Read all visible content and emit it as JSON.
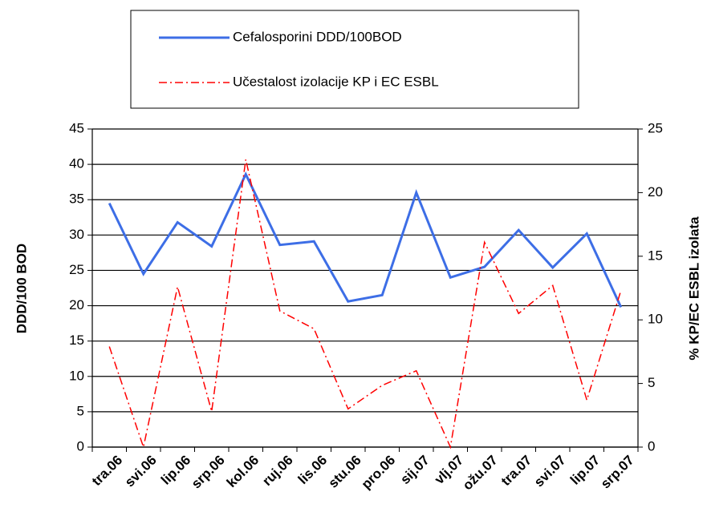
{
  "chart_data": {
    "type": "line",
    "categories": [
      "tra.06",
      "svi.06",
      "lip.06",
      "srp.06",
      "kol.06",
      "ruj.06",
      "lis.06",
      "stu.06",
      "pro.06",
      "sij.07",
      "vlj.07",
      "ožu.07",
      "tra.07",
      "svi.07",
      "lip.07",
      "srp.07"
    ],
    "series": [
      {
        "name": "Cefalosporini DDD/100BOD",
        "color": "#3d6ee6",
        "dash": "solid",
        "values": [
          34.5,
          24.5,
          31.8,
          28.4,
          38.6,
          28.6,
          29.1,
          20.6,
          21.5,
          36,
          24,
          25.5,
          30.7,
          25.4,
          30.2,
          19.8
        ]
      },
      {
        "name": "Učestalost izolacije KP i EC ESBL",
        "color": "#ff0000",
        "dash": "dashdot",
        "axis": "y2",
        "values": [
          7.9,
          0,
          12.6,
          2.8,
          22.6,
          10.7,
          9.3,
          3,
          4.85,
          6,
          0,
          16.1,
          10.5,
          12.7,
          3.7,
          12.3
        ]
      }
    ],
    "ylabel": "DDD/100 BOD",
    "y2label": "% KP/EC ESBL izolata",
    "ylim": [
      0,
      45
    ],
    "yticks": [
      0,
      5,
      10,
      15,
      20,
      25,
      30,
      35,
      40,
      45
    ],
    "y2lim": [
      0,
      25
    ],
    "y2ticks": [
      0,
      5,
      10,
      15,
      20,
      25
    ],
    "grid": true
  }
}
